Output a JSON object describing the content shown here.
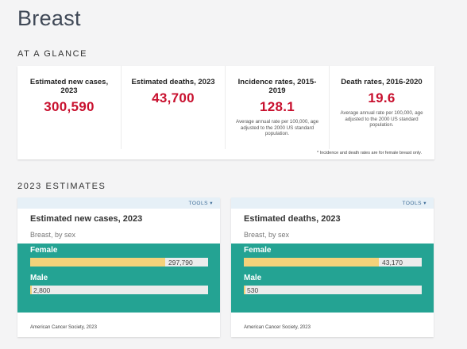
{
  "page": {
    "title": "Breast"
  },
  "glance": {
    "heading": "AT A GLANCE",
    "stats": [
      {
        "label": "Estimated new cases, 2023",
        "value": "300,590",
        "note": ""
      },
      {
        "label": "Estimated deaths, 2023",
        "value": "43,700",
        "note": ""
      },
      {
        "label": "Incidence rates, 2015-2019",
        "value": "128.1",
        "note": "Average annual rate per 100,000, age adjusted to the 2000 US standard population."
      },
      {
        "label": "Death rates, 2016-2020",
        "value": "19.6",
        "note": "Average annual rate per 100,000, age adjusted to the 2000 US standard population."
      }
    ],
    "footnote": "* Incidence and death rates are for female breast only."
  },
  "estimates": {
    "heading": "2023 ESTIMATES",
    "charts": [
      {
        "tools_label": "TOOLS",
        "title": "Estimated new cases, 2023",
        "subtitle": "Breast, by sex",
        "source": "American Cancer Society, 2023",
        "chart_data": {
          "type": "bar",
          "categories": [
            "Female",
            "Male"
          ],
          "values": [
            297790,
            2800
          ],
          "value_labels": [
            "297,790",
            "2,800"
          ],
          "title": "Estimated new cases, 2023",
          "subtitle": "Breast, by sex"
        }
      },
      {
        "tools_label": "TOOLS",
        "title": "Estimated deaths, 2023",
        "subtitle": "Breast, by sex",
        "source": "American Cancer Society, 2023",
        "chart_data": {
          "type": "bar",
          "categories": [
            "Female",
            "Male"
          ],
          "values": [
            43170,
            530
          ],
          "value_labels": [
            "43,170",
            "530"
          ],
          "title": "Estimated deaths, 2023",
          "subtitle": "Breast, by sex"
        }
      }
    ]
  },
  "colors": {
    "stat_value": "#c8102e",
    "panel": "#24a393",
    "bar": "#f4d27a",
    "track": "#ececec"
  }
}
